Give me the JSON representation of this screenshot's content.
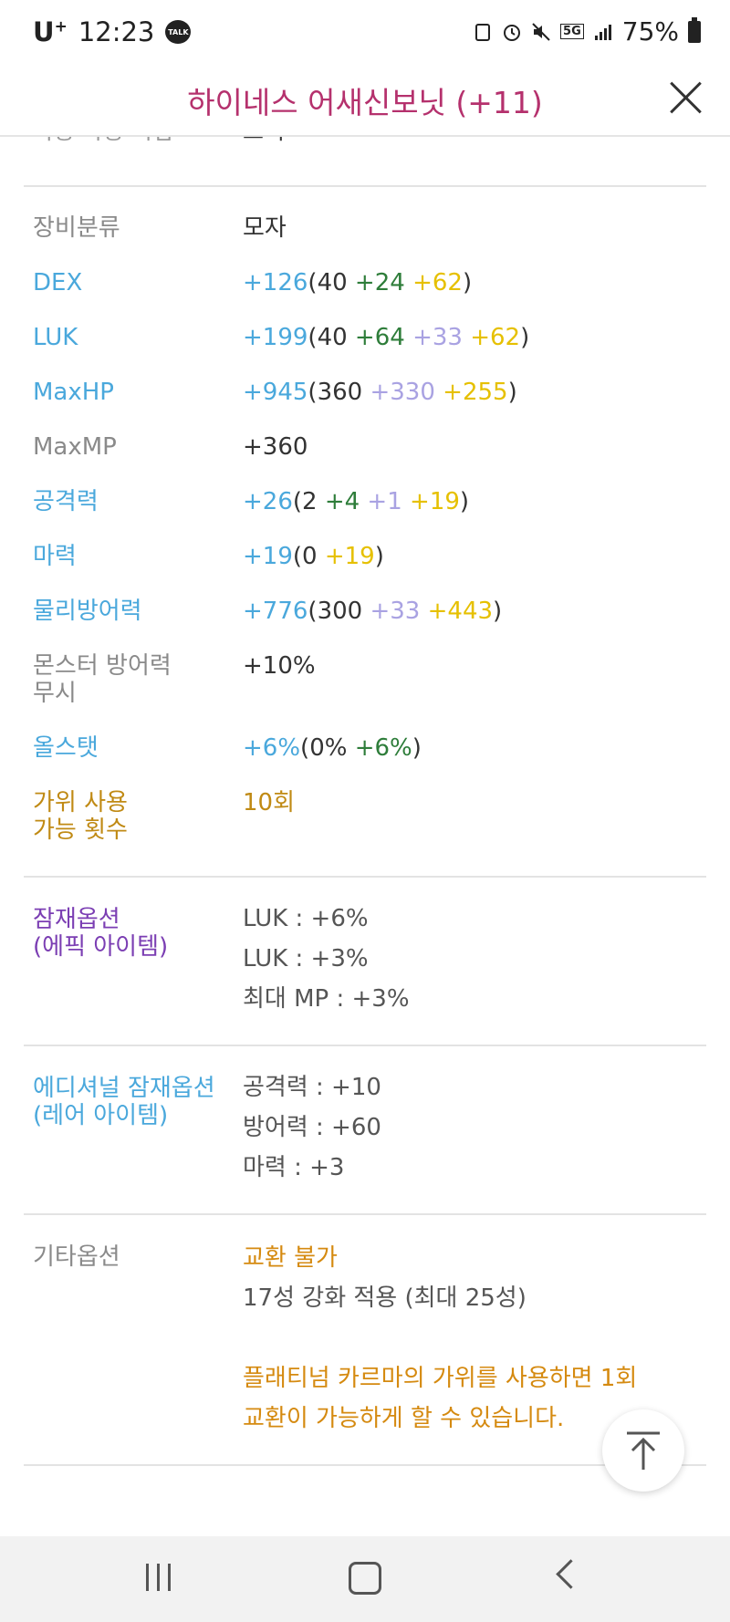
{
  "status_bar": {
    "carrier": "U",
    "carrier_sup": "+",
    "time": "12:23",
    "talk": "TALK",
    "battery_pct": "75%",
    "network": "5G"
  },
  "header": {
    "title": "하이네스 어새신보닛 (+11)"
  },
  "cut_row": {
    "label": "착용 가능 직업",
    "value": "도적"
  },
  "stats": {
    "category": {
      "label": "장비분류",
      "value": "모자"
    },
    "dex": {
      "label": "DEX",
      "total": "+126",
      "open": "(",
      "base": "40",
      "bonus": " +24",
      "enh": " +62",
      "close": ")"
    },
    "luk": {
      "label": "LUK",
      "total": "+199",
      "open": "(",
      "base": "40",
      "bonus": " +64",
      "scroll": " +33",
      "enh": " +62",
      "close": ")"
    },
    "maxhp": {
      "label": "MaxHP",
      "total": "+945",
      "open": "(",
      "base": "360",
      "scroll": " +330",
      "enh": " +255",
      "close": ")"
    },
    "maxmp": {
      "label": "MaxMP",
      "value": "+360"
    },
    "attack": {
      "label": "공격력",
      "total": "+26",
      "open": "(",
      "base": "2",
      "bonus": " +4",
      "scroll": " +1",
      "enh": " +19",
      "close": ")"
    },
    "magic": {
      "label": "마력",
      "total": "+19",
      "open": "(",
      "base": "0",
      "enh": " +19",
      "close": ")"
    },
    "pdef": {
      "label": "물리방어력",
      "total": "+776",
      "open": "(",
      "base": "300",
      "scroll": " +33",
      "enh": " +443",
      "close": ")"
    },
    "ignore_def": {
      "label_1": "몬스터 방어력",
      "label_2": "무시",
      "value": "+10%"
    },
    "allstat": {
      "label": "올스탯",
      "total": "+6%",
      "open": "(",
      "base": "0%",
      "bonus": " +6%",
      "close": ")"
    },
    "scissors": {
      "label_1": "가위 사용",
      "label_2": "가능 횟수",
      "value": "10회"
    }
  },
  "potential": {
    "label_1": "잠재옵션",
    "label_2": "(에픽 아이템)",
    "lines": [
      "LUK : +6%",
      "LUK : +3%",
      "최대 MP : +3%"
    ]
  },
  "additional": {
    "label_1": "에디셔널 잠재옵션",
    "label_2": "(레어 아이템)",
    "lines": [
      "공격력 : +10",
      "방어력 : +60",
      "마력 : +3"
    ]
  },
  "etc": {
    "label": "기타옵션",
    "trade": "교환 불가",
    "star": "17성 강화 적용 (최대 25성)",
    "note_1": "플래티넘 카르마의 가위를 사용하면 1회",
    "note_2": "교환이 가능하게 할 수 있습니다."
  }
}
